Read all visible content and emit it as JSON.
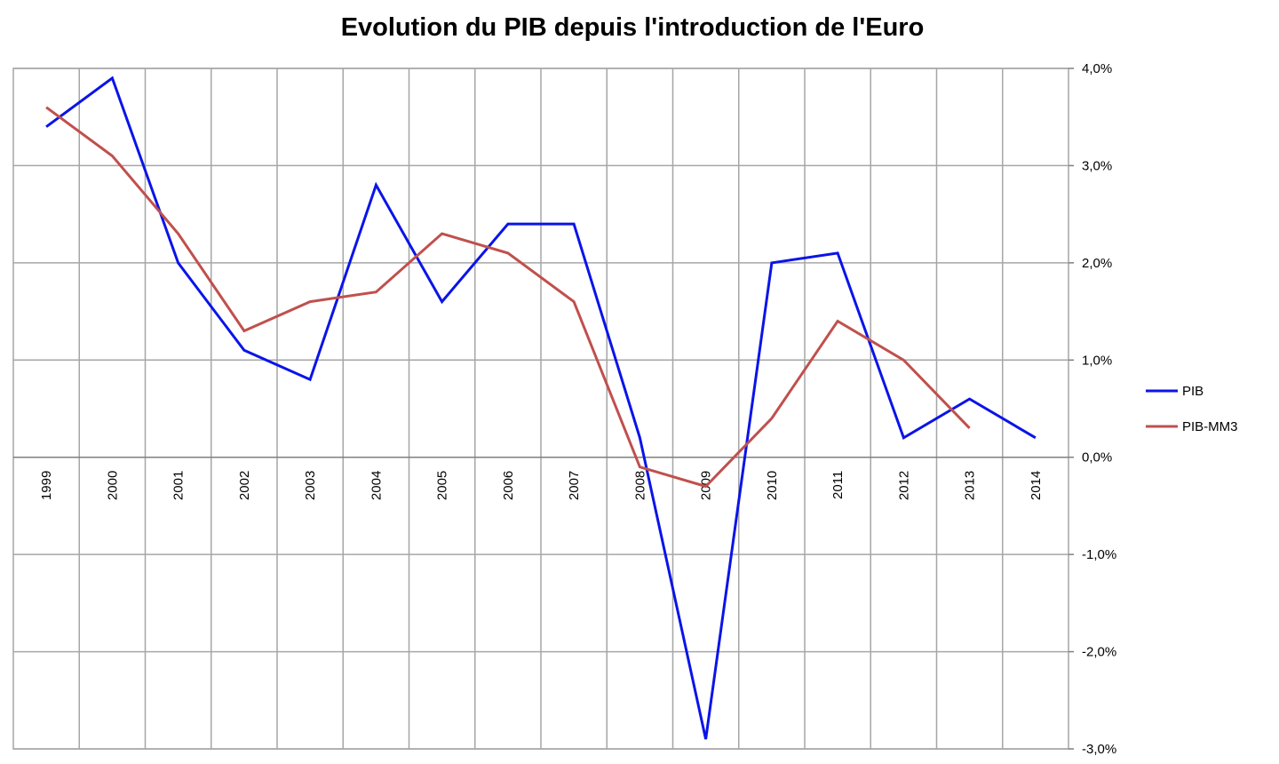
{
  "chart_data": {
    "type": "line",
    "title": "Evolution du PIB depuis l'introduction de l'Euro",
    "categories": [
      "1999",
      "2000",
      "2001",
      "2002",
      "2003",
      "2004",
      "2005",
      "2006",
      "2007",
      "2008",
      "2009",
      "2010",
      "2011",
      "2012",
      "2013",
      "2014"
    ],
    "series": [
      {
        "name": "PIB",
        "color": "#0a14e8",
        "values": [
          3.4,
          3.9,
          2.0,
          1.1,
          0.8,
          2.8,
          1.6,
          2.4,
          2.4,
          0.2,
          -2.9,
          2.0,
          2.1,
          0.2,
          0.6,
          0.2
        ]
      },
      {
        "name": "PIB-MM3",
        "color": "#c0504d",
        "values": [
          3.6,
          3.1,
          2.3,
          1.3,
          1.6,
          1.7,
          2.3,
          2.1,
          1.6,
          -0.1,
          -0.3,
          0.4,
          1.4,
          1.0,
          0.3,
          null
        ]
      }
    ],
    "y_ticks": [
      "4,0%",
      "3,0%",
      "2,0%",
      "1,0%",
      "0,0%",
      "-1,0%",
      "-2,0%",
      "-3,0%"
    ],
    "y_tick_values": [
      4,
      3,
      2,
      1,
      0,
      -1,
      -2,
      -3
    ],
    "ylim": [
      -3,
      4
    ],
    "y_axis_side": "right",
    "xlabel": "",
    "ylabel": "",
    "grid": true,
    "legend_position": "right"
  }
}
